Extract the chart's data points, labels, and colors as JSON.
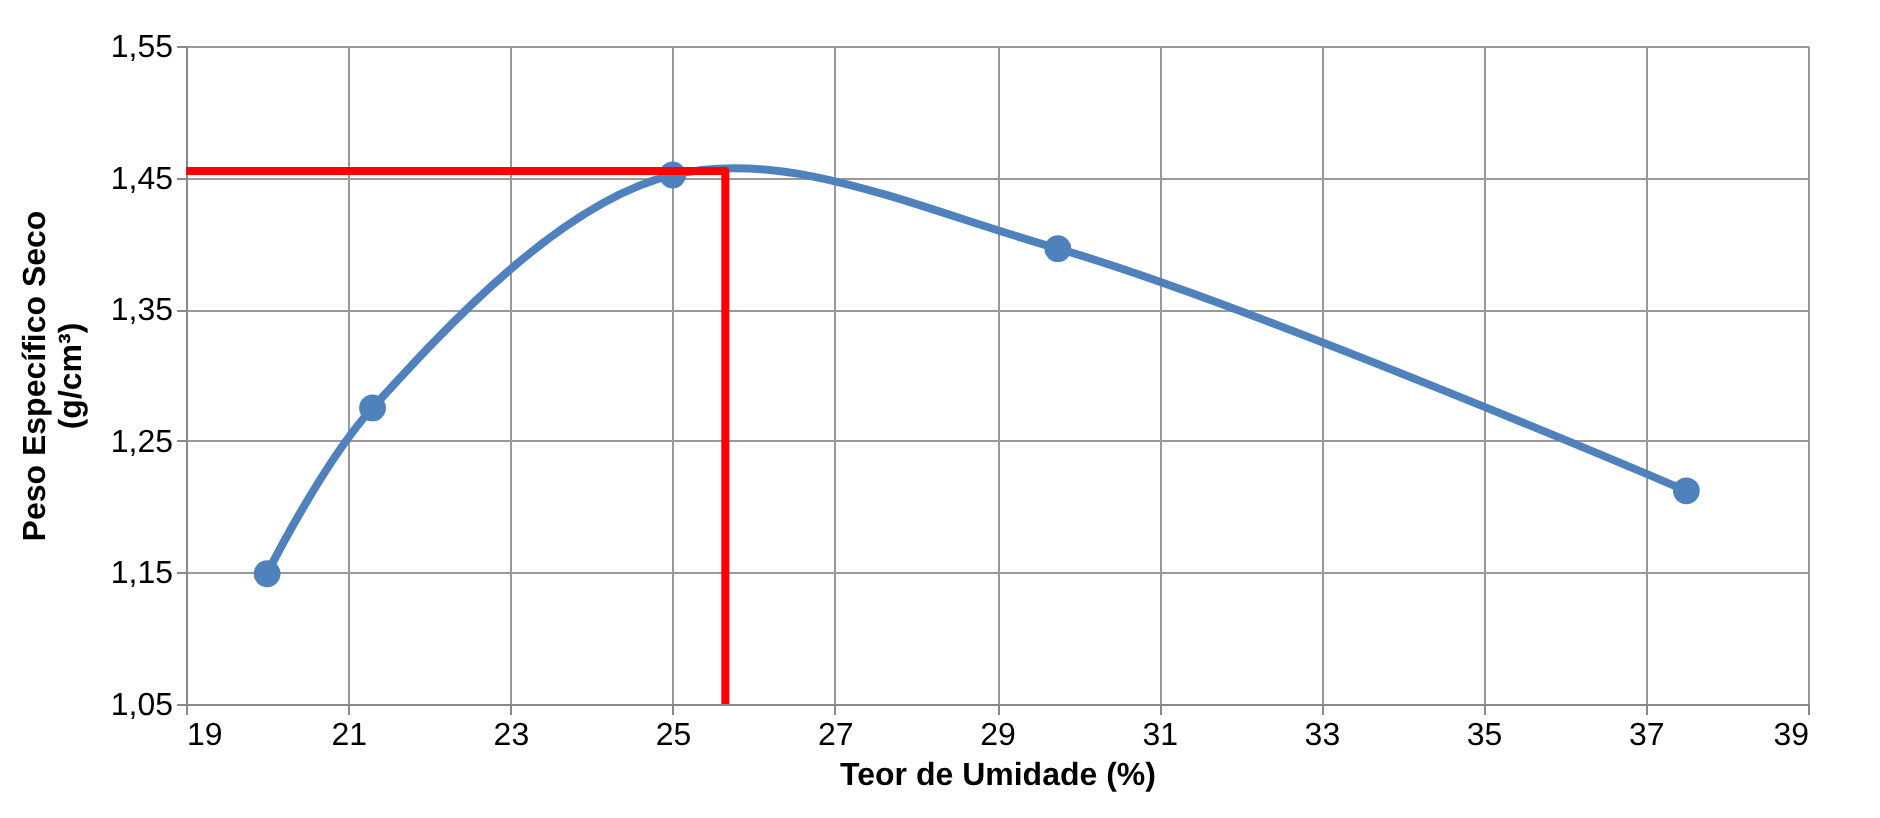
{
  "chart_data": {
    "type": "line",
    "xlabel": "Teor de Umidade (%)",
    "ylabel": "Peso Específico Seco\n(g/cm³)",
    "xlim": [
      19,
      39
    ],
    "xticks": [
      19,
      21,
      23,
      25,
      27,
      29,
      31,
      33,
      35,
      37,
      39
    ],
    "ylim": [
      1.05,
      1.55
    ],
    "yticks": [
      {
        "value": 1.05,
        "label": "1,05"
      },
      {
        "value": 1.15,
        "label": "1,15"
      },
      {
        "value": 1.25,
        "label": "1,25"
      },
      {
        "value": 1.35,
        "label": "1,35"
      },
      {
        "value": 1.45,
        "label": "1,45"
      },
      {
        "value": 1.55,
        "label": "1,55"
      }
    ],
    "grid": true,
    "series": [
      {
        "x": [
          20,
          21.3,
          25,
          29.75,
          37.5
        ],
        "values": [
          1.149,
          1.275,
          1.452,
          1.396,
          1.212
        ],
        "color": "#4f81bd",
        "marker": "circle",
        "line_style": "solid"
      },
      {
        "x": [
          19,
          25.65,
          25.65
        ],
        "values": [
          1.455,
          1.455,
          1.05
        ],
        "color": "#ff0000",
        "marker": "none",
        "line_style": "solid"
      }
    ]
  }
}
